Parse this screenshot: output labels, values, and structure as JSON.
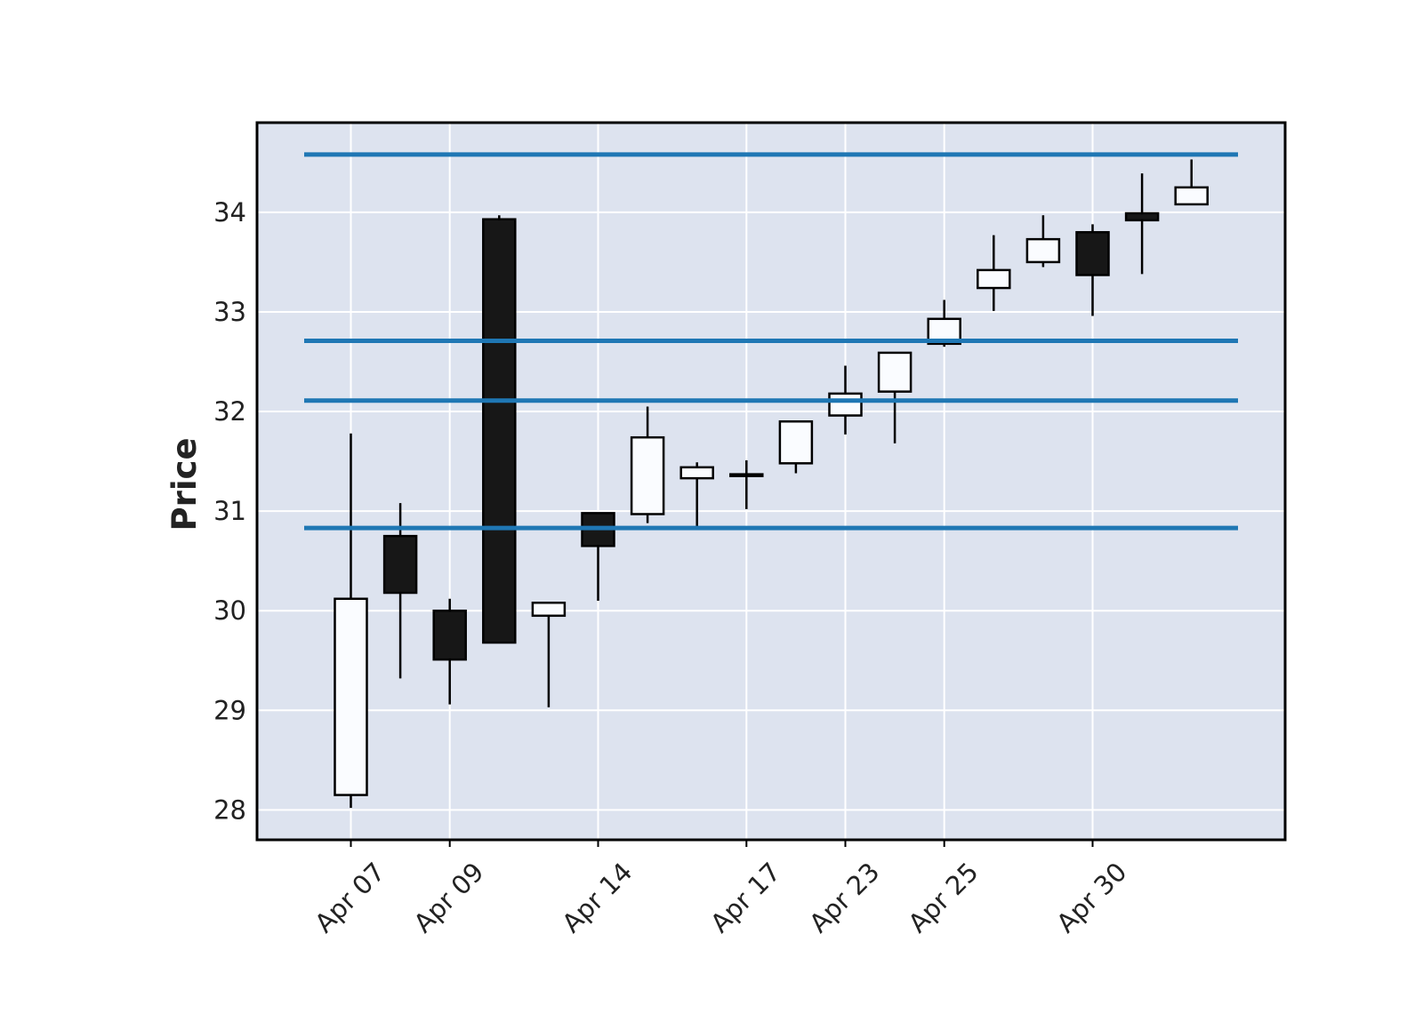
{
  "chart_data": {
    "type": "candlestick",
    "title": "",
    "xlabel": "",
    "ylabel": "Price",
    "ylim": [
      27.7,
      34.9
    ],
    "grid": true,
    "colors": {
      "background": "#dde3ef",
      "grid": "#ffffff",
      "up_fill": "#fafcff",
      "down_fill": "#171717",
      "edge": "#000000",
      "hline": "#1f77b4"
    },
    "yticks": [
      28,
      29,
      30,
      31,
      32,
      33,
      34
    ],
    "x_tick_labels": [
      "Apr 07",
      "Apr 09",
      "Apr 14",
      "Apr 17",
      "Apr 23",
      "Apr 25",
      "Apr 30"
    ],
    "x_tick_dates": [
      "2025-04-07",
      "2025-04-09",
      "2025-04-14",
      "2025-04-17",
      "2025-04-23",
      "2025-04-25",
      "2025-04-30"
    ],
    "x": [
      "2025-04-07",
      "2025-04-08",
      "2025-04-09",
      "2025-04-10",
      "2025-04-11",
      "2025-04-14",
      "2025-04-15",
      "2025-04-16",
      "2025-04-17",
      "2025-04-22",
      "2025-04-23",
      "2025-04-24",
      "2025-04-25",
      "2025-04-28",
      "2025-04-29",
      "2025-04-30",
      "2025-05-01",
      "2025-05-02"
    ],
    "series": [
      {
        "open": [
          28.15,
          30.75,
          30.0,
          33.93,
          29.95,
          30.98,
          30.97,
          31.33,
          31.37,
          31.48,
          31.96,
          32.2,
          32.68,
          33.24,
          33.5,
          33.8,
          33.99,
          34.08
        ],
        "high": [
          31.78,
          31.08,
          30.12,
          33.97,
          30.08,
          30.98,
          32.05,
          31.49,
          31.51,
          31.9,
          32.46,
          32.59,
          33.12,
          33.77,
          33.97,
          33.88,
          34.39,
          34.53
        ],
        "low": [
          28.02,
          29.32,
          29.06,
          29.68,
          29.03,
          30.1,
          30.88,
          30.84,
          31.02,
          31.38,
          31.77,
          31.68,
          32.65,
          33.01,
          33.45,
          32.96,
          33.38,
          34.08
        ],
        "close": [
          30.12,
          30.18,
          29.51,
          29.68,
          30.08,
          30.65,
          31.74,
          31.44,
          31.37,
          31.9,
          32.18,
          32.59,
          32.93,
          33.42,
          33.73,
          33.37,
          33.92,
          34.25
        ]
      }
    ],
    "hlines": [
      34.58,
      32.71,
      32.11,
      30.83
    ]
  }
}
